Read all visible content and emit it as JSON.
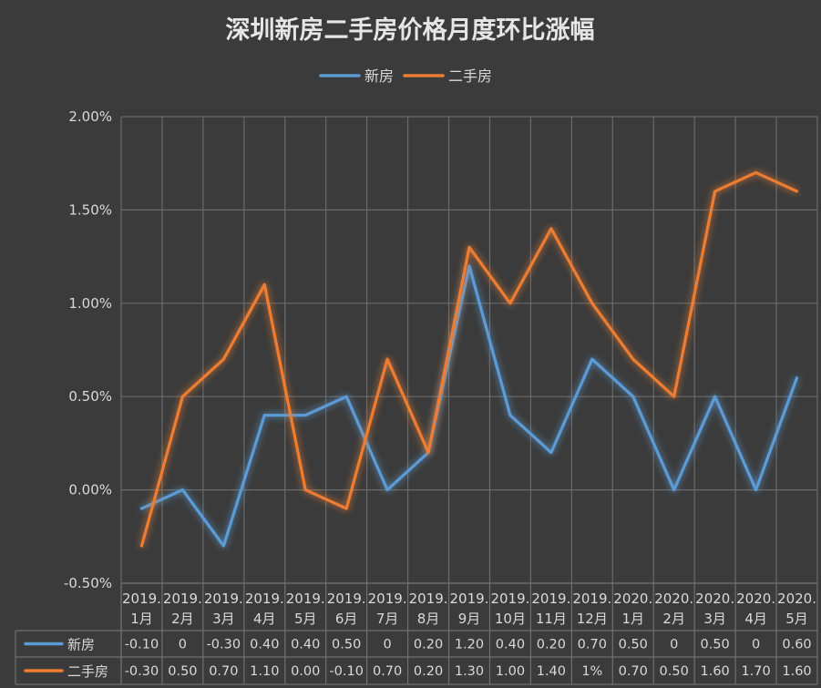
{
  "chart_data": {
    "type": "line",
    "title": "深圳新房二手房价格月度环比涨幅",
    "categories": [
      [
        "2019.",
        "1月"
      ],
      [
        "2019.",
        "2月"
      ],
      [
        "2019.",
        "3月"
      ],
      [
        "2019.",
        "4月"
      ],
      [
        "2019.",
        "5月"
      ],
      [
        "2019.",
        "6月"
      ],
      [
        "2019.",
        "7月"
      ],
      [
        "2019.",
        "8月"
      ],
      [
        "2019.",
        "9月"
      ],
      [
        "2019.",
        "10月"
      ],
      [
        "2019.",
        "11月"
      ],
      [
        "2019.",
        "12月"
      ],
      [
        "2020.",
        "1月"
      ],
      [
        "2020.",
        "2月"
      ],
      [
        "2020.",
        "3月"
      ],
      [
        "2020.",
        "4月"
      ],
      [
        "2020.",
        "5月"
      ]
    ],
    "y_ticks": [
      "2.00%",
      "1.50%",
      "1.00%",
      "0.50%",
      "0.00%",
      "-0.50%"
    ],
    "ylim": [
      -0.5,
      2.0
    ],
    "grid": true,
    "legend_position": "top-center",
    "series": [
      {
        "name": "新房",
        "color": "#5b9bd5",
        "values": [
          -0.1,
          0,
          -0.3,
          0.4,
          0.4,
          0.5,
          0,
          0.2,
          1.2,
          0.4,
          0.2,
          0.7,
          0.5,
          0,
          0.5,
          0,
          0.6
        ],
        "labels": [
          "-0.10",
          "0",
          "-0.30",
          "0.40",
          "0.40",
          "0.50",
          "0",
          "0.20",
          "1.20",
          "0.40",
          "0.20",
          "0.70",
          "0.50",
          "0",
          "0.50",
          "0",
          "0.60"
        ]
      },
      {
        "name": "二手房",
        "color": "#ed7d31",
        "values": [
          -0.3,
          0.5,
          0.7,
          1.1,
          0.0,
          -0.1,
          0.7,
          0.2,
          1.3,
          1.0,
          1.4,
          1.0,
          0.7,
          0.5,
          1.6,
          1.7,
          1.6
        ],
        "labels": [
          "-0.30",
          "0.50",
          "0.70",
          "1.10",
          "0.00",
          "-0.10",
          "0.70",
          "0.20",
          "1.30",
          "1.00",
          "1.40",
          "1%",
          "0.70",
          "0.50",
          "1.60",
          "1.70",
          "1.60"
        ]
      }
    ]
  }
}
